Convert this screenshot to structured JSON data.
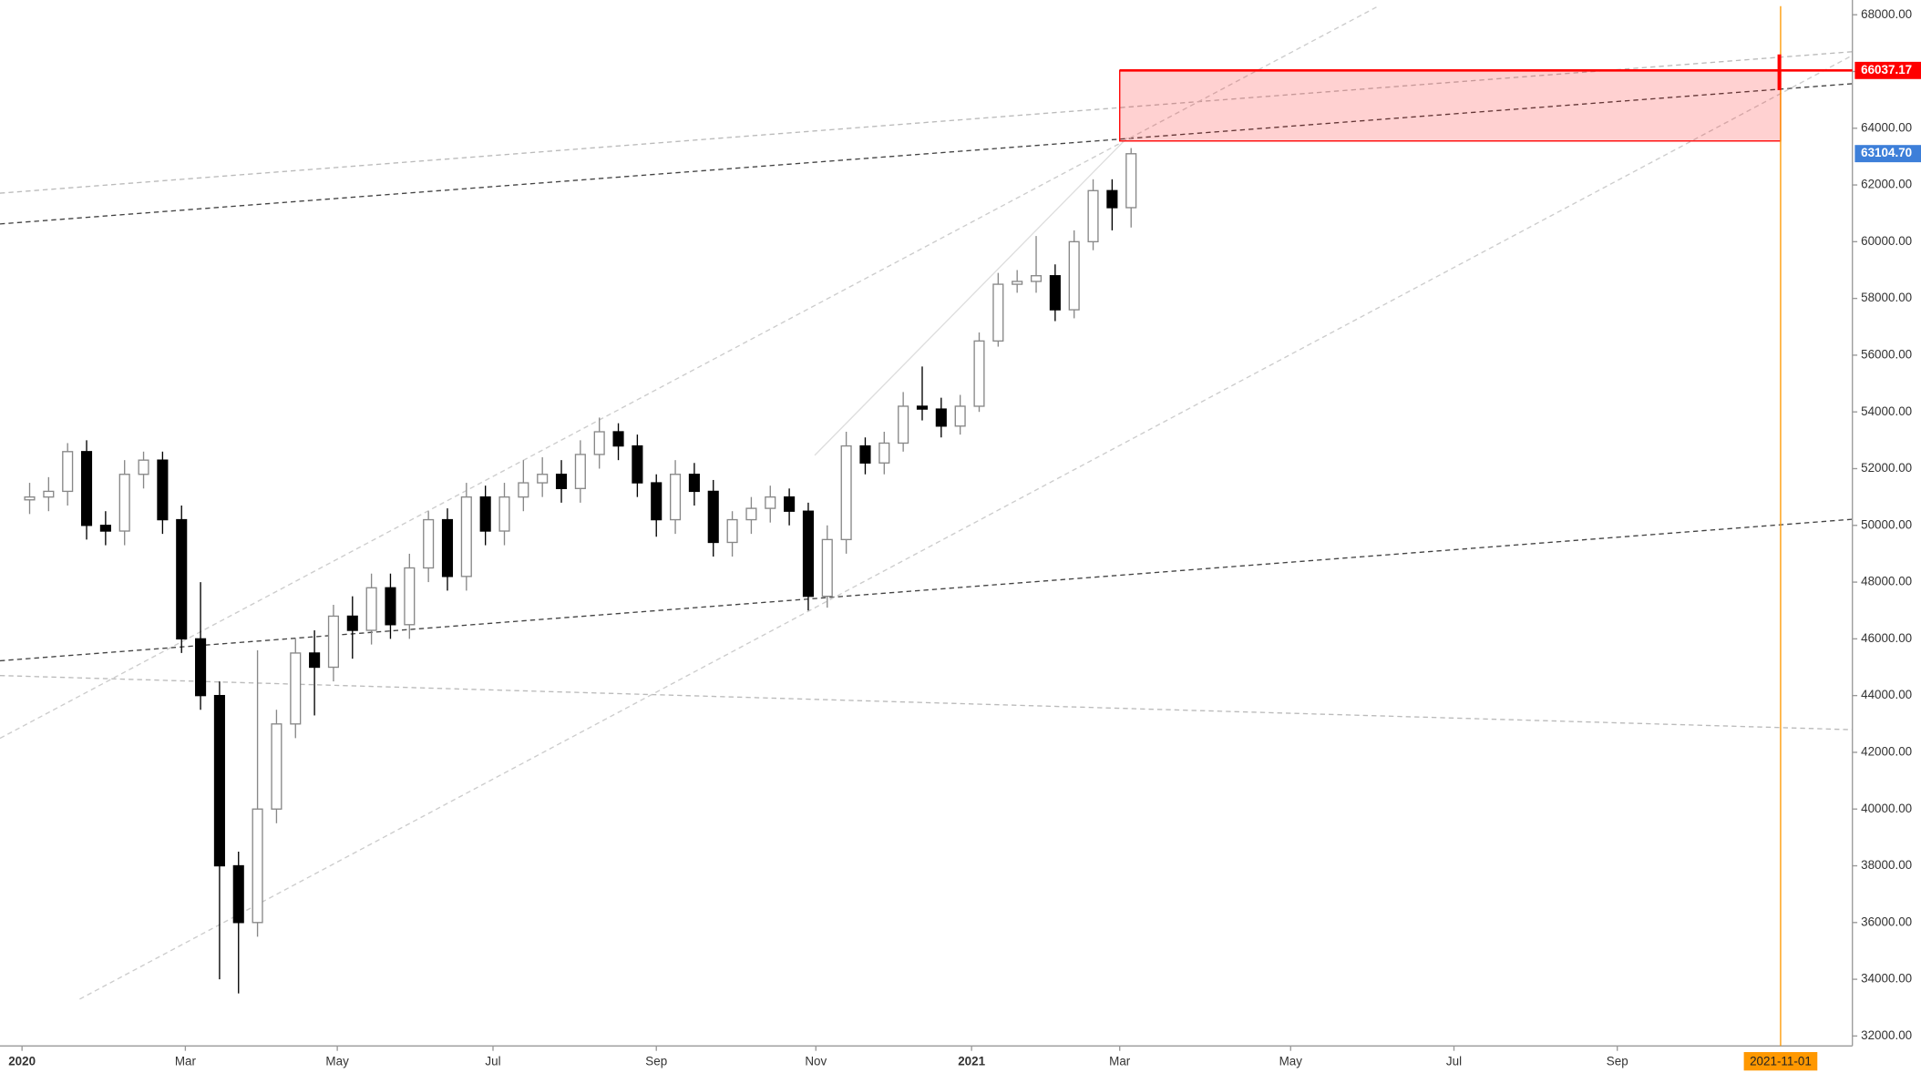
{
  "chart_data": {
    "type": "candlestick",
    "x": [
      2,
      7,
      12,
      17,
      22,
      27,
      32,
      37,
      42,
      47,
      52,
      57,
      62,
      67,
      72,
      77,
      82,
      87,
      92,
      97,
      102,
      107,
      112,
      117,
      122,
      127,
      132,
      137,
      142,
      147,
      152,
      157,
      162,
      167,
      172,
      177,
      182,
      187,
      192,
      197,
      202,
      207,
      212,
      217,
      222,
      227,
      232,
      237,
      242,
      247,
      252,
      257,
      262,
      267,
      272,
      277,
      282,
      287,
      292
    ],
    "open": [
      50900,
      51000,
      51200,
      52600,
      50000,
      49800,
      51800,
      52300,
      50200,
      46000,
      44000,
      38000,
      36000,
      40000,
      43000,
      45500,
      45000,
      46800,
      46300,
      47800,
      46500,
      48500,
      50200,
      48200,
      51000,
      49800,
      51000,
      51500,
      51800,
      51300,
      52500,
      53300,
      52800,
      51500,
      50200,
      51800,
      51200,
      49400,
      50200,
      50600,
      51000,
      50500,
      47500,
      49500,
      52800,
      52200,
      52900,
      54200,
      54100,
      53500,
      54200,
      56500,
      58500,
      58600,
      58800,
      57600,
      60000,
      61800,
      61200
    ],
    "high": [
      51500,
      51700,
      52900,
      53000,
      50500,
      52300,
      52600,
      52600,
      50700,
      48000,
      44500,
      38500,
      45600,
      43500,
      46000,
      46300,
      47200,
      47500,
      48300,
      48300,
      49000,
      50500,
      50600,
      51500,
      51400,
      51500,
      52300,
      52400,
      52300,
      53000,
      53800,
      53600,
      53200,
      51800,
      52300,
      52200,
      51600,
      50500,
      51000,
      51400,
      51300,
      50800,
      50000,
      53300,
      53100,
      53300,
      54700,
      55600,
      54500,
      54600,
      56800,
      58900,
      59000,
      60200,
      59200,
      60400,
      62200,
      62200,
      63300
    ],
    "low": [
      50400,
      50500,
      50700,
      49500,
      49300,
      49300,
      51300,
      49700,
      45500,
      43500,
      34000,
      33500,
      35500,
      39500,
      42500,
      43300,
      44500,
      45300,
      45800,
      46000,
      46000,
      48000,
      47700,
      47700,
      49300,
      49300,
      50500,
      51000,
      50800,
      50800,
      52000,
      52300,
      51000,
      49600,
      49700,
      50700,
      48900,
      48900,
      49700,
      50100,
      50000,
      47000,
      47100,
      49000,
      51800,
      51800,
      52600,
      53700,
      53100,
      53200,
      54000,
      56300,
      58200,
      58200,
      57200,
      57300,
      59700,
      60400,
      60500
    ],
    "close": [
      51000,
      51200,
      52600,
      50000,
      49800,
      51800,
      52300,
      50200,
      46000,
      44000,
      38000,
      36000,
      40000,
      43000,
      45500,
      45000,
      46800,
      46300,
      47800,
      46500,
      48500,
      50200,
      48200,
      51000,
      49800,
      51000,
      51500,
      51800,
      51300,
      52500,
      53300,
      52800,
      51500,
      50200,
      51800,
      51200,
      49400,
      50200,
      50600,
      51000,
      50500,
      47500,
      49500,
      52800,
      52200,
      52900,
      54200,
      54100,
      53500,
      54200,
      56500,
      58500,
      58600,
      58800,
      57600,
      60000,
      61800,
      61200,
      63100
    ],
    "xlim": [
      -5.8,
      481.9
    ],
    "xticks": [
      {
        "value": 0,
        "label": "2020"
      },
      {
        "value": 43,
        "label": "Mar"
      },
      {
        "value": 83,
        "label": "May"
      },
      {
        "value": 124,
        "label": "Jul"
      },
      {
        "value": 167,
        "label": "Sep"
      },
      {
        "value": 209,
        "label": "Nov"
      },
      {
        "value": 250,
        "label": "2021"
      },
      {
        "value": 289,
        "label": "Mar"
      },
      {
        "value": 334,
        "label": "May"
      },
      {
        "value": 377,
        "label": "Jul"
      },
      {
        "value": 420,
        "label": "Sep"
      }
    ],
    "ylim": [
      31650,
      68520
    ],
    "yticks": [
      {
        "value": 32000,
        "label": "32000.00"
      },
      {
        "value": 34000,
        "label": "34000.00"
      },
      {
        "value": 36000,
        "label": "36000.00"
      },
      {
        "value": 38000,
        "label": "38000.00"
      },
      {
        "value": 40000,
        "label": "40000.00"
      },
      {
        "value": 42000,
        "label": "42000.00"
      },
      {
        "value": 44000,
        "label": "44000.00"
      },
      {
        "value": 46000,
        "label": "46000.00"
      },
      {
        "value": 48000,
        "label": "48000.00"
      },
      {
        "value": 50000,
        "label": "50000.00"
      },
      {
        "value": 52000,
        "label": "52000.00"
      },
      {
        "value": 54000,
        "label": "54000.00"
      },
      {
        "value": 56000,
        "label": "56000.00"
      },
      {
        "value": 58000,
        "label": "58000.00"
      },
      {
        "value": 60000,
        "label": "60000.00"
      },
      {
        "value": 62000,
        "label": "62000.00"
      },
      {
        "value": 64000,
        "label": "64000.00"
      },
      {
        "value": 66000,
        "label": "66000.00"
      },
      {
        "value": 68000,
        "label": "68000.00"
      }
    ],
    "vline": {
      "value": 463,
      "label": "2021-11-01",
      "color": "#ff9800"
    },
    "zone": {
      "x": [
        289,
        463
      ],
      "y": [
        63550,
        66037.17
      ],
      "color": "#ff0000"
    },
    "price_tags": [
      {
        "value": 66037.17,
        "label": "66037.17",
        "color": "#ff0000"
      },
      {
        "value": 63104.7,
        "label": "63104.70",
        "color": "#3d7fd9"
      }
    ]
  }
}
